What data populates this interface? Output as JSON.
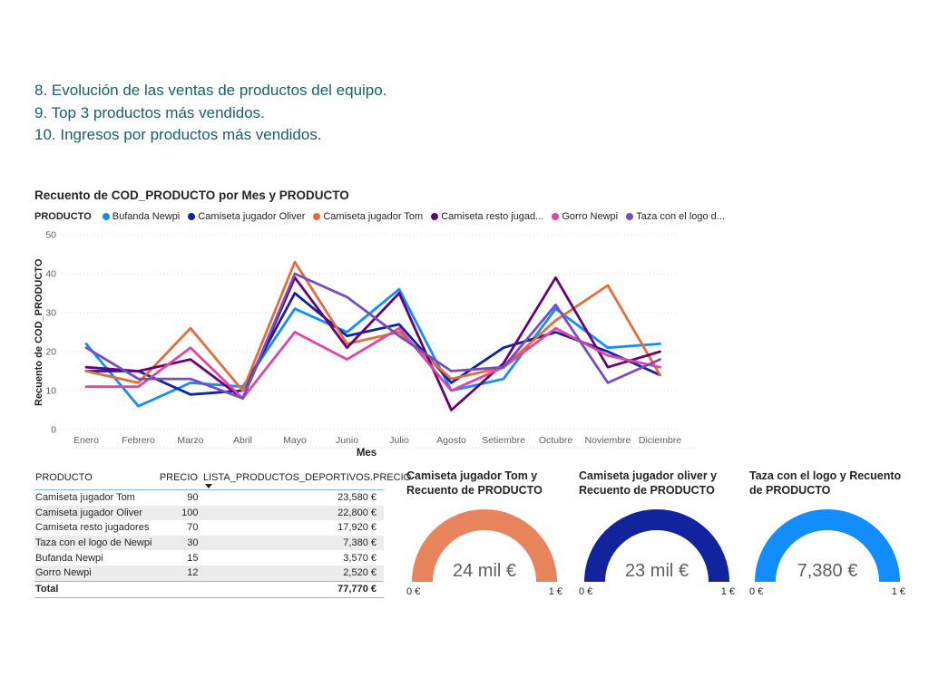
{
  "colors": {
    "note_text": "#155f70",
    "text_dark": "#252423",
    "text_gray": "#605e5c",
    "grid": "#d9d9d9",
    "table_line": "#7fbce4",
    "row_stripe": "#ececec"
  },
  "notes": {
    "color": "#155f70",
    "lines": [
      "8. Evolución de las ventas de productos del equipo.",
      "9. Top 3 productos más vendidos.",
      "10. Ingresos por productos más vendidos."
    ]
  },
  "chart_data": [
    {
      "type": "line",
      "title": "Recuento de COD_PRODUCTO por Mes y PRODUCTO",
      "xlabel": "Mes",
      "ylabel": "Recuento de COD_PRODUCTO",
      "ylim": [
        0,
        50
      ],
      "yticks": [
        0,
        10,
        20,
        30,
        40,
        50
      ],
      "grid": "horizontal-dotted",
      "legend_title": "PRODUCTO",
      "legend_position": "top",
      "categories": [
        "Enero",
        "Febrero",
        "Marzo",
        "Abril",
        "Mayo",
        "Junio",
        "Julio",
        "Agosto",
        "Setiembre",
        "Octubre",
        "Noviembre",
        "Diciembre"
      ],
      "series": [
        {
          "name": "Bufanda Newpi",
          "color": "#118DFF",
          "values": [
            22,
            6,
            12,
            11,
            31,
            25,
            36,
            10,
            13,
            31,
            21,
            22
          ]
        },
        {
          "name": "Camiseta jugador Oliver",
          "color": "#12239E",
          "values": [
            15,
            15,
            9,
            10,
            35,
            24,
            27,
            12,
            21,
            25,
            20,
            14
          ]
        },
        {
          "name": "Camiseta jugador Tom",
          "color": "#E66C37",
          "values": [
            15,
            12,
            26,
            10,
            43,
            22,
            25,
            13,
            16,
            28,
            37,
            14
          ]
        },
        {
          "name": "Camiseta resto jugad...",
          "color": "#6B007B",
          "values": [
            16,
            15,
            18,
            8,
            39,
            21,
            35,
            5,
            17,
            39,
            16,
            20
          ]
        },
        {
          "name": "Gorro Newpi",
          "color": "#E044A7",
          "values": [
            11,
            11,
            21,
            8,
            25,
            18,
            26,
            10,
            16,
            26,
            19,
            16
          ]
        },
        {
          "name": "Taza con el logo d...",
          "color": "#744EC2",
          "values": [
            21,
            13,
            13,
            8,
            40,
            34,
            24,
            15,
            16,
            32,
            12,
            18
          ]
        }
      ]
    },
    {
      "type": "table",
      "columns": [
        "PRODUCTO",
        "PRECIO",
        "LISTA_PRODUCTOS_DEPORTIVOS.PRECIO"
      ],
      "sorted_by": "LISTA_PRODUCTOS_DEPORTIVOS.PRECIO",
      "sort_direction": "descending",
      "rows": [
        {
          "producto": "Camiseta jugador Tom",
          "precio": "90",
          "lista_precio": "23,580 €"
        },
        {
          "producto": "Camiseta jugador Oliver",
          "precio": "100",
          "lista_precio": "22,800 €"
        },
        {
          "producto": "Camiseta resto jugadores",
          "precio": "70",
          "lista_precio": "17,920 €"
        },
        {
          "producto": "Taza con el logo de Newpi",
          "precio": "30",
          "lista_precio": "7,380 €"
        },
        {
          "producto": "Bufanda Newpi",
          "precio": "15",
          "lista_precio": "3,570 €"
        },
        {
          "producto": "Gorro Newpi",
          "precio": "12",
          "lista_precio": "2,520 €"
        }
      ],
      "total_label": "Total",
      "total_value": "77,770 €"
    },
    {
      "type": "gauge",
      "title": "Camiseta jugador Tom y Recuento de PRODUCTO",
      "value_label": "24 mil €",
      "min_label": "0 €",
      "max_label": "1 €",
      "color": "#E8845C"
    },
    {
      "type": "gauge",
      "title": "Camiseta jugador oliver y Recuento de PRODUCTO",
      "value_label": "23 mil €",
      "min_label": "0 €",
      "max_label": "1 €",
      "color": "#12239E"
    },
    {
      "type": "gauge",
      "title": "Taza con el logo y Recuento de PRODUCTO",
      "value_label": "7,380 €",
      "min_label": "0 €",
      "max_label": "1 €",
      "color": "#118DFF"
    }
  ]
}
